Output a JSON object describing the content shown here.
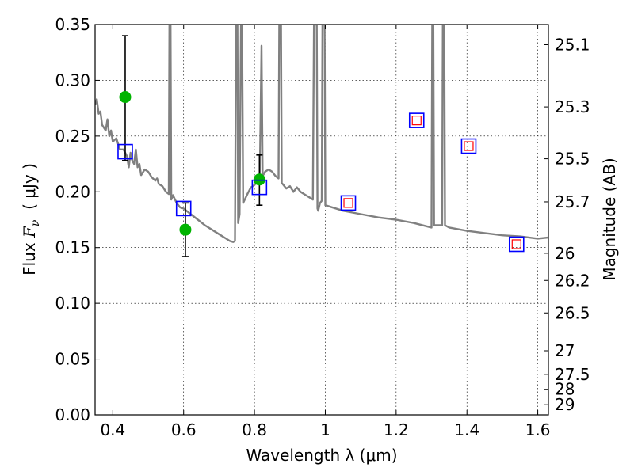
{
  "chart_data": {
    "type": "scatter",
    "xlabel": "Wavelength  λ (μm)",
    "ylabel": "Flux  F_ν  ( μJy )",
    "ylabel_parts": {
      "prefix": "Flux ",
      "italic": "F",
      "sub": "ν",
      "suffix": "  ( μJy )"
    },
    "ylabel_right": "Magnitude (AB)",
    "xlim": [
      0.35,
      1.63
    ],
    "ylim": [
      0.0,
      0.35
    ],
    "grid": true,
    "x_ticks": [
      {
        "value": 0.4,
        "label": "0.4"
      },
      {
        "value": 0.6,
        "label": "0.6"
      },
      {
        "value": 0.8,
        "label": "0.8"
      },
      {
        "value": 1.0,
        "label": "1"
      },
      {
        "value": 1.2,
        "label": "1.2"
      },
      {
        "value": 1.4,
        "label": "1.4"
      },
      {
        "value": 1.6,
        "label": "1.6"
      }
    ],
    "y_ticks": [
      {
        "value": 0.0,
        "label": "0.00"
      },
      {
        "value": 0.05,
        "label": "0.05"
      },
      {
        "value": 0.1,
        "label": "0.10"
      },
      {
        "value": 0.15,
        "label": "0.15"
      },
      {
        "value": 0.2,
        "label": "0.20"
      },
      {
        "value": 0.25,
        "label": "0.25"
      },
      {
        "value": 0.3,
        "label": "0.30"
      },
      {
        "value": 0.35,
        "label": "0.35"
      }
    ],
    "right_ticks": [
      {
        "label": "25.1",
        "flux": 0.3319
      },
      {
        "label": "25.3",
        "flux": 0.2761
      },
      {
        "label": "25.5",
        "flux": 0.2296
      },
      {
        "label": "25.7",
        "flux": 0.191
      },
      {
        "label": "26",
        "flux": 0.1449
      },
      {
        "label": "26.2",
        "flux": 0.1205
      },
      {
        "label": "26.5",
        "flux": 0.0914
      },
      {
        "label": "27",
        "flux": 0.0575
      },
      {
        "label": "27.5",
        "flux": 0.0363
      },
      {
        "label": "28",
        "flux": 0.0229
      },
      {
        "label": "29",
        "flux": 0.0091
      }
    ],
    "series": [
      {
        "kind": "line",
        "color": "#808080",
        "points": [
          [
            0.35,
            0.278
          ],
          [
            0.355,
            0.283
          ],
          [
            0.36,
            0.27
          ],
          [
            0.365,
            0.272
          ],
          [
            0.37,
            0.26
          ],
          [
            0.38,
            0.255
          ],
          [
            0.385,
            0.265
          ],
          [
            0.39,
            0.25
          ],
          [
            0.395,
            0.255
          ],
          [
            0.4,
            0.245
          ],
          [
            0.41,
            0.248
          ],
          [
            0.42,
            0.238
          ],
          [
            0.43,
            0.238
          ],
          [
            0.44,
            0.232
          ],
          [
            0.445,
            0.222
          ],
          [
            0.45,
            0.235
          ],
          [
            0.455,
            0.228
          ],
          [
            0.46,
            0.225
          ],
          [
            0.465,
            0.238
          ],
          [
            0.47,
            0.222
          ],
          [
            0.475,
            0.225
          ],
          [
            0.48,
            0.215
          ],
          [
            0.49,
            0.22
          ],
          [
            0.5,
            0.218
          ],
          [
            0.51,
            0.213
          ],
          [
            0.52,
            0.21
          ],
          [
            0.525,
            0.212
          ],
          [
            0.53,
            0.207
          ],
          [
            0.54,
            0.205
          ],
          [
            0.55,
            0.2
          ],
          [
            0.558,
            0.198
          ],
          [
            0.56,
            0.35
          ],
          [
            0.563,
            0.35
          ],
          [
            0.565,
            0.193
          ],
          [
            0.57,
            0.197
          ],
          [
            0.58,
            0.19
          ],
          [
            0.59,
            0.186
          ],
          [
            0.6,
            0.185
          ],
          [
            0.62,
            0.18
          ],
          [
            0.64,
            0.175
          ],
          [
            0.66,
            0.17
          ],
          [
            0.68,
            0.166
          ],
          [
            0.7,
            0.162
          ],
          [
            0.72,
            0.158
          ],
          [
            0.73,
            0.156
          ],
          [
            0.74,
            0.155
          ],
          [
            0.745,
            0.156
          ],
          [
            0.748,
            0.35
          ],
          [
            0.752,
            0.35
          ],
          [
            0.754,
            0.172
          ],
          [
            0.758,
            0.18
          ],
          [
            0.762,
            0.35
          ],
          [
            0.765,
            0.35
          ],
          [
            0.768,
            0.19
          ],
          [
            0.78,
            0.198
          ],
          [
            0.79,
            0.204
          ],
          [
            0.8,
            0.206
          ],
          [
            0.805,
            0.208
          ],
          [
            0.81,
            0.21
          ],
          [
            0.815,
            0.212
          ],
          [
            0.82,
            0.331
          ],
          [
            0.823,
            0.214
          ],
          [
            0.83,
            0.218
          ],
          [
            0.84,
            0.22
          ],
          [
            0.85,
            0.218
          ],
          [
            0.86,
            0.214
          ],
          [
            0.868,
            0.212
          ],
          [
            0.87,
            0.35
          ],
          [
            0.875,
            0.35
          ],
          [
            0.877,
            0.208
          ],
          [
            0.89,
            0.203
          ],
          [
            0.9,
            0.205
          ],
          [
            0.91,
            0.2
          ],
          [
            0.92,
            0.204
          ],
          [
            0.93,
            0.2
          ],
          [
            0.94,
            0.198
          ],
          [
            0.95,
            0.196
          ],
          [
            0.96,
            0.194
          ],
          [
            0.965,
            0.193
          ],
          [
            0.968,
            0.35
          ],
          [
            0.976,
            0.35
          ],
          [
            0.978,
            0.185
          ],
          [
            0.98,
            0.183
          ],
          [
            0.985,
            0.19
          ],
          [
            0.99,
            0.192
          ],
          [
            0.992,
            0.35
          ],
          [
            0.998,
            0.35
          ],
          [
            1.0,
            0.188
          ],
          [
            1.05,
            0.183
          ],
          [
            1.1,
            0.18
          ],
          [
            1.15,
            0.177
          ],
          [
            1.2,
            0.175
          ],
          [
            1.25,
            0.172
          ],
          [
            1.3,
            0.168
          ],
          [
            1.302,
            0.35
          ],
          [
            1.305,
            0.35
          ],
          [
            1.307,
            0.17
          ],
          [
            1.33,
            0.17
          ],
          [
            1.332,
            0.35
          ],
          [
            1.336,
            0.35
          ],
          [
            1.338,
            0.17
          ],
          [
            1.35,
            0.168
          ],
          [
            1.4,
            0.165
          ],
          [
            1.45,
            0.163
          ],
          [
            1.5,
            0.161
          ],
          [
            1.55,
            0.16
          ],
          [
            1.6,
            0.158
          ],
          [
            1.63,
            0.159
          ]
        ]
      },
      {
        "kind": "points",
        "marker": "filled-circle",
        "color": "#00b400",
        "points": [
          {
            "x": 0.435,
            "y": 0.285,
            "err_lo": 0.057,
            "err_hi": 0.055
          },
          {
            "x": 0.605,
            "y": 0.166,
            "err_lo": 0.024,
            "err_hi": 0.024
          },
          {
            "x": 0.814,
            "y": 0.211,
            "err_lo": 0.023,
            "err_hi": 0.022
          }
        ]
      },
      {
        "kind": "points",
        "marker": "open-square",
        "color": "#0000ff",
        "points": [
          {
            "x": 0.435,
            "y": 0.236
          },
          {
            "x": 0.6,
            "y": 0.185
          },
          {
            "x": 0.814,
            "y": 0.204
          },
          {
            "x": 1.065,
            "y": 0.19
          },
          {
            "x": 1.258,
            "y": 0.264
          },
          {
            "x": 1.405,
            "y": 0.241
          },
          {
            "x": 1.54,
            "y": 0.153
          }
        ]
      },
      {
        "kind": "points",
        "marker": "small-open-square",
        "color": "#ff0000",
        "points": [
          {
            "x": 1.065,
            "y": 0.19
          },
          {
            "x": 1.258,
            "y": 0.264
          },
          {
            "x": 1.405,
            "y": 0.241
          },
          {
            "x": 1.54,
            "y": 0.153
          }
        ]
      }
    ]
  }
}
